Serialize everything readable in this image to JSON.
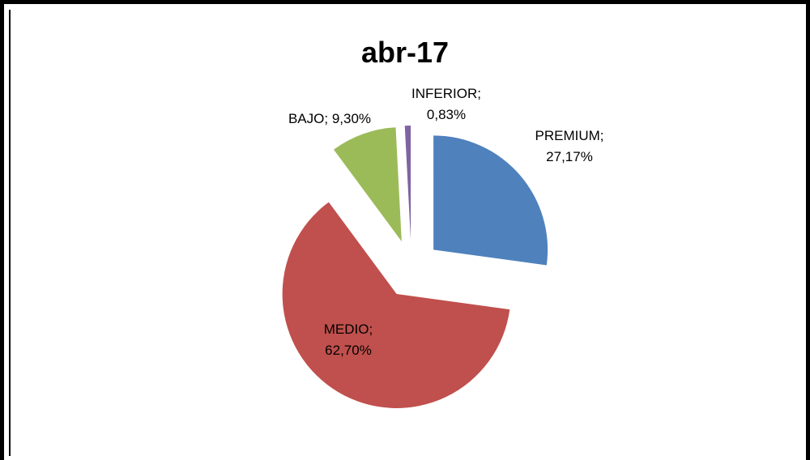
{
  "chart_data": {
    "type": "pie",
    "title": "abr-17",
    "values": [
      27.17,
      62.7,
      9.3,
      0.83
    ],
    "value_labels": [
      "PREMIUM; 27,17%",
      "MEDIO; 62,70%",
      "BAJO; 9,30%",
      "INFERIOR; 0,83%"
    ],
    "colors": [
      "#4f81bd",
      "#c0504d",
      "#9bbb59",
      "#8064a2"
    ],
    "exploded": true
  }
}
